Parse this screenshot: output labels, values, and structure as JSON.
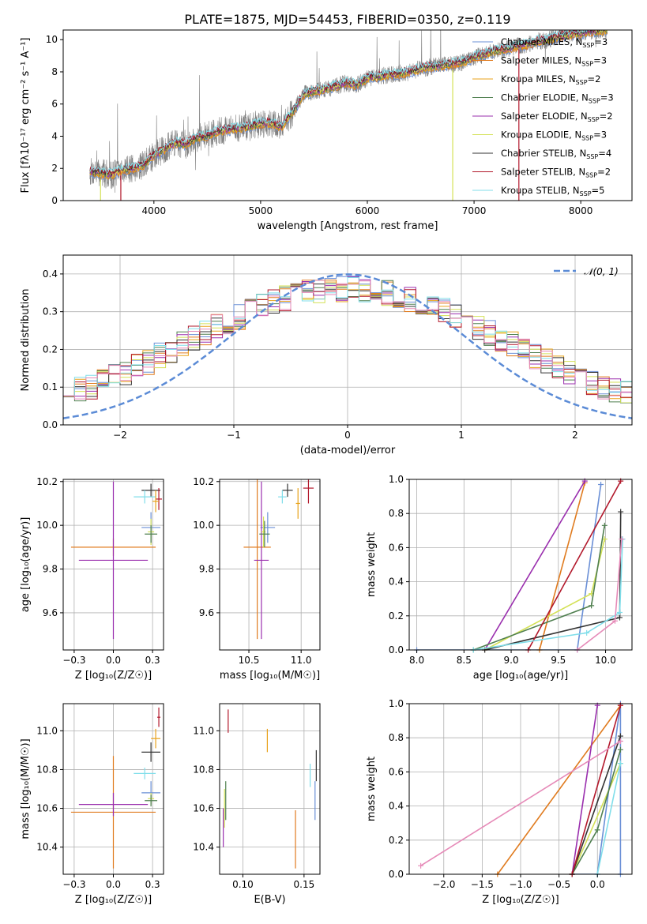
{
  "figure": {
    "title": "PLATE=1875, MJD=54453, FIBERID=0350, z=0.119"
  },
  "models": [
    {
      "name": "Chabrier MILES",
      "nssp": "3",
      "color": "#6a8fd6"
    },
    {
      "name": "Salpeter MILES",
      "nssp": "3",
      "color": "#e07b1f"
    },
    {
      "name": "Kroupa MILES",
      "nssp": "2",
      "color": "#e8a21a"
    },
    {
      "name": "Chabrier ELODIE",
      "nssp": "3",
      "color": "#4f7f4f"
    },
    {
      "name": "Salpeter ELODIE",
      "nssp": "2",
      "color": "#9a2fae"
    },
    {
      "name": "Kroupa ELODIE",
      "nssp": "3",
      "color": "#d4e157"
    },
    {
      "name": "Chabrier STELIB",
      "nssp": "4",
      "color": "#333333"
    },
    {
      "name": "Salpeter STELIB",
      "nssp": "2",
      "color": "#b2182b"
    },
    {
      "name": "Kroupa STELIB",
      "nssp": "5",
      "color": "#80deea"
    }
  ],
  "extra_colors": {
    "pink": "#e68ab8",
    "gray": "#7f7f7f"
  },
  "chart_data": [
    {
      "id": "spectrum",
      "type": "line",
      "xlabel": "wavelength [Angstrom, rest frame]",
      "ylabel": "Flux [fλ10⁻¹⁷ erg cm⁻² s⁻¹ A⁻¹]",
      "xlim": [
        3150,
        8480
      ],
      "ylim": [
        0,
        10.6
      ],
      "xticks": [
        4000,
        5000,
        6000,
        7000,
        8000
      ],
      "yticks": [
        0,
        2,
        4,
        6,
        8,
        10
      ],
      "grid": false,
      "legend": "right",
      "data_series": {
        "name": "data",
        "color": "#7f7f7f"
      },
      "continuum": {
        "x": [
          3400,
          3600,
          3700,
          3800,
          3900,
          4000,
          4100,
          4200,
          4300,
          4400,
          4500,
          4600,
          4700,
          4800,
          4900,
          5000,
          5100,
          5200,
          5300,
          5400,
          5500,
          5600,
          5700,
          5800,
          5900,
          6000,
          6100,
          6200,
          6300,
          6400,
          6500,
          6600,
          6700,
          6800,
          6900,
          7000,
          7100,
          7200,
          7300,
          7400,
          7500,
          7600,
          7700,
          7800,
          7900,
          8000,
          8100,
          8250
        ],
        "y": [
          1.8,
          1.6,
          1.9,
          2.0,
          2.2,
          2.8,
          3.2,
          3.6,
          3.5,
          3.9,
          4.0,
          4.3,
          4.4,
          4.5,
          4.6,
          4.8,
          4.8,
          4.6,
          5.5,
          6.6,
          6.8,
          6.9,
          7.1,
          7.3,
          7.2,
          7.6,
          7.7,
          7.8,
          7.9,
          8.0,
          8.2,
          8.3,
          8.4,
          8.5,
          8.6,
          8.9,
          9.1,
          9.3,
          9.4,
          9.6,
          9.7,
          9.9,
          10.0,
          10.2,
          10.3,
          10.4,
          10.5,
          10.6
        ]
      },
      "dropouts": [
        3500,
        3690,
        6800,
        7420
      ]
    },
    {
      "id": "residuals",
      "type": "histogram",
      "xlabel": "(data-model)/error",
      "ylabel": "Normed distribution",
      "xlim": [
        -2.5,
        2.5
      ],
      "ylim": [
        0,
        0.45
      ],
      "xticks": [
        -2,
        -1,
        0,
        1,
        2
      ],
      "yticks": [
        0.0,
        0.1,
        0.2,
        0.3,
        0.4
      ],
      "grid": true,
      "legend": "top-right",
      "reference": {
        "label": "𝒩(0, 1)",
        "mean": 0,
        "sd": 1,
        "color": "#5b8bd6"
      },
      "bins": 50,
      "base_shape": {
        "center": 0,
        "sd": 1.4,
        "peak": 0.355,
        "floor": 0.005
      }
    },
    {
      "id": "age_vs_z",
      "type": "scatter",
      "xlabel": "Z [log₁₀(Z/Z☉)]",
      "ylabel": "age  [log₁₀(age/yr)]",
      "xlim": [
        -0.32,
        0.32
      ],
      "ylim": [
        9.43,
        10.21
      ],
      "xticks": [
        -0.25,
        0.0,
        0.25
      ],
      "yticks": [
        9.6,
        9.8,
        10.0,
        10.2
      ],
      "grid": true,
      "points": [
        {
          "m": 0,
          "x": 0.24,
          "xe": 0.06,
          "y": 9.99,
          "ye": 0.07
        },
        {
          "m": 1,
          "x": 0.0,
          "xe": 0.27,
          "y": 9.9,
          "ye": 0.04
        },
        {
          "m": 4,
          "x": 0.0,
          "xe": 0.22,
          "y": 9.84,
          "ye": 0.36
        },
        {
          "m": 5,
          "x": 0.24,
          "xe": 0.02,
          "y": 9.97,
          "ye": 0.06
        },
        {
          "m": 3,
          "x": 0.24,
          "xe": 0.04,
          "y": 9.96,
          "ye": 0.04
        },
        {
          "m": 6,
          "x": 0.24,
          "xe": 0.06,
          "y": 10.16,
          "ye": 0.03
        },
        {
          "m": 7,
          "x": 0.29,
          "xe": 0.02,
          "y": 10.12,
          "ye": 0.05
        },
        {
          "m": 8,
          "x": 0.2,
          "xe": 0.07,
          "y": 10.13,
          "ye": 0.03
        },
        {
          "m": 2,
          "x": 0.27,
          "xe": 0.02,
          "y": 10.11,
          "ye": 0.05
        }
      ]
    },
    {
      "id": "age_vs_mass",
      "type": "scatter",
      "xlabel": "mass [log₁₀(M/M☉)]",
      "ylabel": "",
      "xlim": [
        10.22,
        11.18
      ],
      "ylim": [
        9.43,
        10.21
      ],
      "xticks": [
        10.5,
        11.0
      ],
      "yticks": [
        9.6,
        9.8,
        10.0,
        10.2
      ],
      "grid": true,
      "points": [
        {
          "m": 0,
          "x": 10.68,
          "xe": 0.07,
          "y": 9.99,
          "ye": 0.07
        },
        {
          "m": 1,
          "x": 10.58,
          "xe": 0.13,
          "y": 9.9,
          "ye": 0.42
        },
        {
          "m": 4,
          "x": 10.62,
          "xe": 0.07,
          "y": 9.84,
          "ye": 0.36
        },
        {
          "m": 5,
          "x": 10.64,
          "xe": 0.02,
          "y": 9.97,
          "ye": 0.07
        },
        {
          "m": 3,
          "x": 10.65,
          "xe": 0.05,
          "y": 9.96,
          "ye": 0.06
        },
        {
          "m": 6,
          "x": 10.87,
          "xe": 0.05,
          "y": 10.16,
          "ye": 0.03
        },
        {
          "m": 7,
          "x": 11.07,
          "xe": 0.05,
          "y": 10.17,
          "ye": 0.07
        },
        {
          "m": 8,
          "x": 10.82,
          "xe": 0.04,
          "y": 10.13,
          "ye": 0.03
        },
        {
          "m": 2,
          "x": 10.97,
          "xe": 0.02,
          "y": 10.1,
          "ye": 0.07
        }
      ]
    },
    {
      "id": "weight_vs_age",
      "type": "line",
      "xlabel": "age  [log₁₀(age/yr)]",
      "ylabel": "mass weight",
      "xlim": [
        7.92,
        10.28
      ],
      "ylim": [
        0,
        1.0
      ],
      "xticks": [
        8.0,
        8.5,
        9.0,
        9.5,
        10.0
      ],
      "yticks": [
        0.0,
        0.2,
        0.4,
        0.6,
        0.8,
        1.0
      ],
      "grid": true,
      "series": [
        {
          "m": 0,
          "x": [
            8.0,
            9.7,
            9.95
          ],
          "y": [
            0.0,
            0.0,
            0.97
          ]
        },
        {
          "m": 1,
          "x": [
            9.3,
            9.78
          ],
          "y": [
            0.0,
            0.98
          ]
        },
        {
          "m": 4,
          "x": [
            8.72,
            9.78
          ],
          "y": [
            0.0,
            0.99
          ]
        },
        {
          "m": 5,
          "x": [
            8.72,
            9.85,
            9.99
          ],
          "y": [
            0.0,
            0.33,
            0.65
          ]
        },
        {
          "m": 3,
          "x": [
            8.6,
            9.85,
            9.99
          ],
          "y": [
            0.0,
            0.26,
            0.73
          ]
        },
        {
          "m": 6,
          "x": [
            8.72,
            10.15,
            10.16
          ],
          "y": [
            0.0,
            0.19,
            0.81
          ]
        },
        {
          "m": 7,
          "x": [
            9.18,
            10.16
          ],
          "y": [
            0.0,
            0.99
          ]
        },
        {
          "m": 8,
          "x": [
            8.6,
            9.8,
            10.15,
            10.18
          ],
          "y": [
            0.0,
            0.1,
            0.22,
            0.65
          ]
        },
        {
          "c": "#e68ab8",
          "x": [
            9.7,
            10.1,
            10.17
          ],
          "y": [
            0.0,
            0.17,
            0.65
          ]
        }
      ]
    },
    {
      "id": "mass_vs_z",
      "type": "scatter",
      "xlabel": "Z [log₁₀(Z/Z☉)]",
      "ylabel": "mass [log₁₀(M/M☉)]",
      "xlim": [
        -0.32,
        0.32
      ],
      "ylim": [
        10.26,
        11.14
      ],
      "xticks": [
        -0.25,
        0.0,
        0.25
      ],
      "yticks": [
        10.4,
        10.6,
        10.8,
        11.0
      ],
      "grid": true,
      "points": [
        {
          "m": 0,
          "x": 0.24,
          "xe": 0.06,
          "y": 10.68,
          "ye": 0.06
        },
        {
          "m": 1,
          "x": 0.0,
          "xe": 0.27,
          "y": 10.58,
          "ye": 0.29
        },
        {
          "m": 4,
          "x": 0.0,
          "xe": 0.22,
          "y": 10.62,
          "ye": 0.06
        },
        {
          "m": 5,
          "x": 0.24,
          "xe": 0.02,
          "y": 10.65,
          "ye": 0.03
        },
        {
          "m": 3,
          "x": 0.24,
          "xe": 0.04,
          "y": 10.64,
          "ye": 0.03
        },
        {
          "m": 6,
          "x": 0.24,
          "xe": 0.06,
          "y": 10.89,
          "ye": 0.05
        },
        {
          "m": 7,
          "x": 0.29,
          "xe": 0.01,
          "y": 11.07,
          "ye": 0.05
        },
        {
          "m": 8,
          "x": 0.2,
          "xe": 0.07,
          "y": 10.78,
          "ye": 0.03
        },
        {
          "m": 2,
          "x": 0.27,
          "xe": 0.03,
          "y": 10.96,
          "ye": 0.05
        }
      ]
    },
    {
      "id": "mass_vs_ebv",
      "type": "scatter",
      "xlabel": "E(B-V)",
      "ylabel": "",
      "xlim": [
        0.081,
        0.163
      ],
      "ylim": [
        10.26,
        11.14
      ],
      "xticks": [
        0.1,
        0.15
      ],
      "yticks": [
        10.4,
        10.6,
        10.8,
        11.0
      ],
      "grid": true,
      "points": [
        {
          "m": 0,
          "x": 0.159,
          "xe": 0.0,
          "y": 10.64,
          "ye": 0.1
        },
        {
          "m": 1,
          "x": 0.143,
          "xe": 0.0,
          "y": 10.44,
          "ye": 0.15
        },
        {
          "m": 4,
          "x": 0.084,
          "xe": 0.0,
          "y": 10.5,
          "ye": 0.1
        },
        {
          "m": 5,
          "x": 0.085,
          "xe": 0.0,
          "y": 10.6,
          "ye": 0.1
        },
        {
          "m": 3,
          "x": 0.086,
          "xe": 0.0,
          "y": 10.64,
          "ye": 0.1
        },
        {
          "m": 6,
          "x": 0.16,
          "xe": 0.0,
          "y": 10.82,
          "ye": 0.08
        },
        {
          "m": 7,
          "x": 0.088,
          "xe": 0.0,
          "y": 11.05,
          "ye": 0.06
        },
        {
          "m": 8,
          "x": 0.155,
          "xe": 0.0,
          "y": 10.77,
          "ye": 0.06
        },
        {
          "m": 2,
          "x": 0.12,
          "xe": 0.0,
          "y": 10.95,
          "ye": 0.06
        }
      ]
    },
    {
      "id": "weight_vs_z",
      "type": "line",
      "xlabel": "Z [log₁₀(Z/Z☉)]",
      "ylabel": "mass weight",
      "xlim": [
        -2.45,
        0.45
      ],
      "ylim": [
        0,
        1.0
      ],
      "xticks": [
        -2.0,
        -1.5,
        -1.0,
        -0.5,
        0.0
      ],
      "yticks": [
        0.0,
        0.2,
        0.4,
        0.6,
        0.8,
        1.0
      ],
      "grid": true,
      "series": [
        {
          "m": 0,
          "x": [
            -0.33,
            0.0,
            0.3,
            0.3
          ],
          "y": [
            0.0,
            0.0,
            1.0,
            0.0
          ]
        },
        {
          "m": 1,
          "x": [
            -1.3,
            0.3
          ],
          "y": [
            0.0,
            0.99
          ]
        },
        {
          "m": 4,
          "x": [
            -0.33,
            0.0
          ],
          "y": [
            0.0,
            0.99
          ]
        },
        {
          "m": 5,
          "x": [
            -0.33,
            0.3
          ],
          "y": [
            0.0,
            0.65
          ]
        },
        {
          "m": 3,
          "x": [
            -0.33,
            0.0,
            0.3
          ],
          "y": [
            0.0,
            0.26,
            0.73
          ]
        },
        {
          "m": 6,
          "x": [
            -0.33,
            0.3
          ],
          "y": [
            0.0,
            0.81
          ]
        },
        {
          "m": 7,
          "x": [
            -0.33,
            0.3
          ],
          "y": [
            0.0,
            0.99
          ]
        },
        {
          "m": 8,
          "x": [
            0.0,
            0.3
          ],
          "y": [
            0.0,
            0.65
          ]
        },
        {
          "c": "#e68ab8",
          "x": [
            -2.3,
            0.3
          ],
          "y": [
            0.05,
            0.78
          ]
        }
      ]
    }
  ]
}
